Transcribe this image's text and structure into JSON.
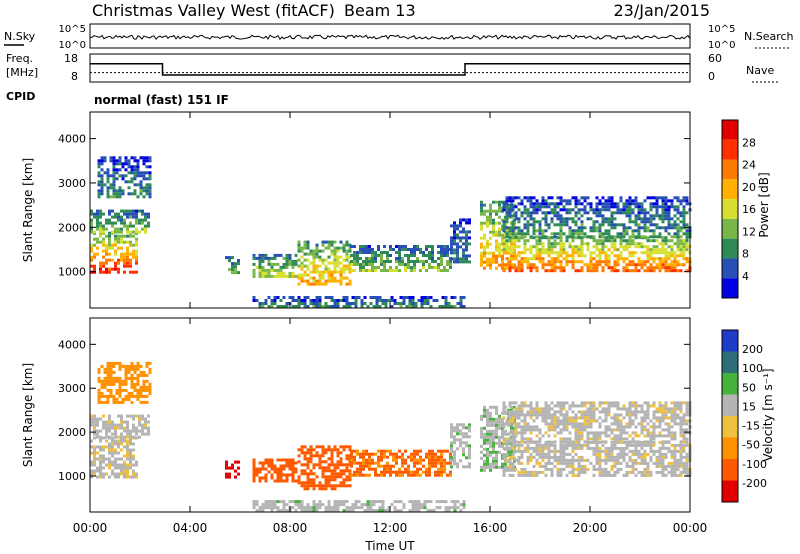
{
  "header": {
    "station": "Christmas Valley West (fitACF)",
    "beam": "Beam 13",
    "date": "23/Jan/2015"
  },
  "noise_panel": {
    "left_label": "N.Sky",
    "right_label": "N.Search",
    "left_ticks": [
      "10^5",
      "10^0"
    ],
    "right_ticks": [
      "10^5",
      "10^0"
    ]
  },
  "freq_panel": {
    "left_label_1": "Freq.",
    "left_label_2": "[MHz]",
    "right_label": "Nave",
    "left_ticks": [
      "18",
      "8"
    ],
    "right_ticks": [
      "60",
      "0"
    ]
  },
  "cpid": {
    "label": "CPID",
    "value": "normal (fast) 151 IF"
  },
  "power_panel": {
    "ylabel": "Slant Range [km]",
    "yticks": [
      "4000",
      "3000",
      "2000",
      "1000"
    ],
    "colorbar_label": "Power [dB]",
    "colorbar_ticks": [
      "28",
      "24",
      "20",
      "16",
      "12",
      "8",
      "4"
    ],
    "colors": [
      "#0000e0",
      "#2850b4",
      "#2e8b57",
      "#7ab648",
      "#d7e030",
      "#ffb000",
      "#ff7a00",
      "#ff3000",
      "#e00000"
    ]
  },
  "velocity_panel": {
    "ylabel": "Slant Range [km]",
    "yticks": [
      "4000",
      "3000",
      "2000",
      "1000"
    ],
    "colorbar_label": "Velocity [m s⁻¹]",
    "colorbar_ticks": [
      "200",
      "100",
      "50",
      "15",
      "-15",
      "-50",
      "-100",
      "-200"
    ],
    "colors": [
      "#1e3cc8",
      "#2d6e78",
      "#46b43c",
      "#b4b4b4",
      "#f0c040",
      "#ff9000",
      "#ff5a00",
      "#e00000"
    ]
  },
  "xaxis": {
    "label": "Time UT",
    "ticks": [
      "00:00",
      "04:00",
      "08:00",
      "12:00",
      "16:00",
      "20:00",
      "00:00"
    ]
  },
  "chart_data": {
    "type": "heatmap",
    "x_range_hours": [
      0,
      24
    ],
    "y_range_km": [
      180,
      4600
    ],
    "freq_steps": [
      {
        "start": 0,
        "end": 2.9,
        "freq_mhz": 14.5
      },
      {
        "start": 2.9,
        "end": 15.0,
        "freq_mhz": 10.5
      },
      {
        "start": 15.0,
        "end": 24,
        "freq_mhz": 14.5
      }
    ],
    "nave_level": 20,
    "noise_level": 0.45,
    "echo_regions": [
      {
        "t0": 0.0,
        "t1": 1.9,
        "r0": 1000,
        "r1": 1900,
        "power": 28,
        "velocity": -10
      },
      {
        "t0": 0.0,
        "t1": 2.4,
        "r0": 1900,
        "r1": 2400,
        "power": 14,
        "velocity": -5
      },
      {
        "t0": 0.3,
        "t1": 2.4,
        "r0": 2700,
        "r1": 3600,
        "power": 9,
        "velocity": -60
      },
      {
        "t0": 5.4,
        "t1": 5.9,
        "r0": 950,
        "r1": 1350,
        "power": 14,
        "velocity": -180
      },
      {
        "t0": 6.5,
        "t1": 8.3,
        "r0": 900,
        "r1": 1400,
        "power": 16,
        "velocity": -90
      },
      {
        "t0": 8.3,
        "t1": 10.4,
        "r0": 700,
        "r1": 1700,
        "power": 22,
        "velocity": -120
      },
      {
        "t0": 10.4,
        "t1": 14.4,
        "r0": 1000,
        "r1": 1600,
        "power": 14,
        "velocity": -80
      },
      {
        "t0": 14.4,
        "t1": 15.2,
        "r0": 1200,
        "r1": 2200,
        "power": 8,
        "velocity": 20
      },
      {
        "t0": 15.6,
        "t1": 17.0,
        "r0": 1100,
        "r1": 2600,
        "power": 22,
        "velocity": 30
      },
      {
        "t0": 16.5,
        "t1": 24.0,
        "r0": 1000,
        "r1": 1800,
        "power": 26,
        "velocity": -5
      },
      {
        "t0": 16.5,
        "t1": 24.0,
        "r0": 1800,
        "r1": 2700,
        "power": 10,
        "velocity": -5
      },
      {
        "t0": 6.5,
        "t1": 15.0,
        "r0": 180,
        "r1": 450,
        "power": 10,
        "velocity": 20
      }
    ]
  }
}
